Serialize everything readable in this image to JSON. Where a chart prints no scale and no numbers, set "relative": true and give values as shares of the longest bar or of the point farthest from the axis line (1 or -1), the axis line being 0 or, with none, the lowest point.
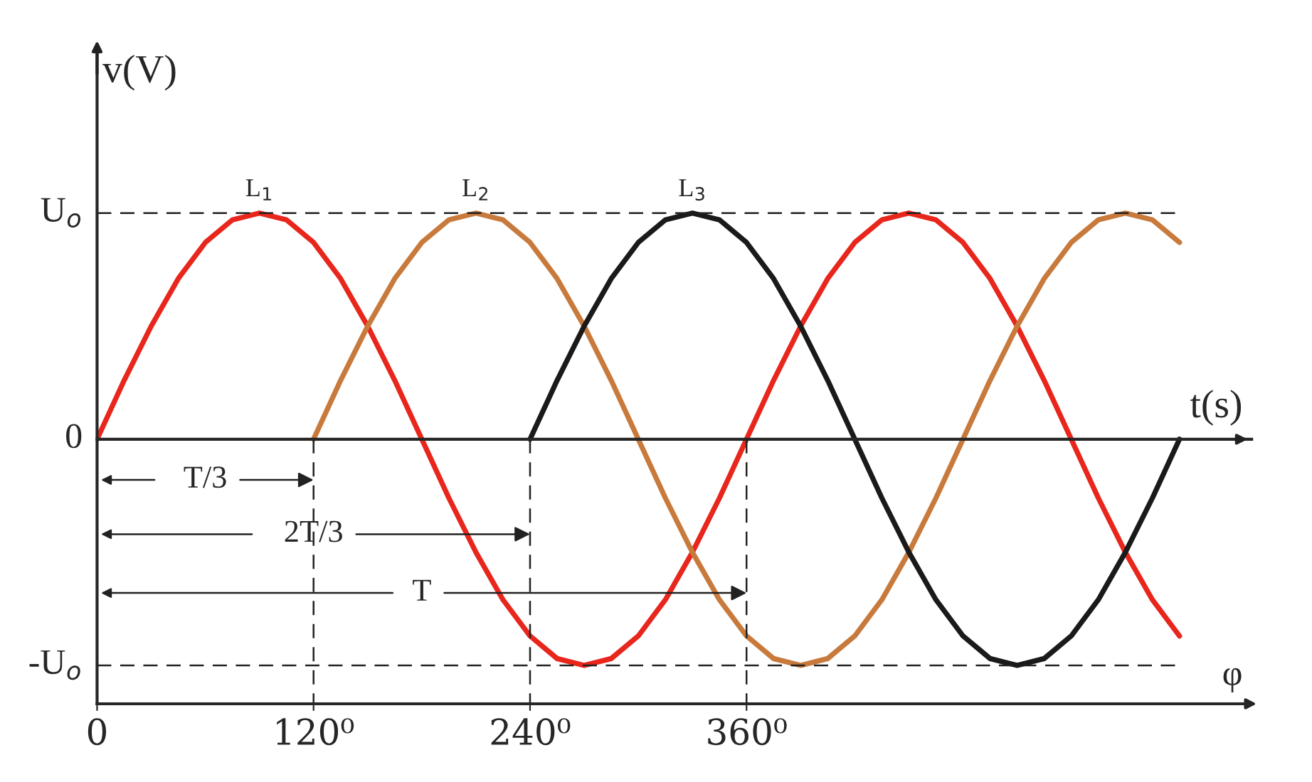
{
  "chart_data": {
    "type": "line",
    "xlabel": "φ",
    "x2label": "t(s)",
    "ylabel": "v(V)",
    "x": [
      0,
      15,
      30,
      45,
      60,
      75,
      90,
      105,
      120,
      135,
      150,
      165,
      180,
      195,
      210,
      225,
      240,
      255,
      270,
      285,
      300,
      315,
      330,
      345,
      360,
      375,
      390,
      405,
      420,
      435,
      450,
      465,
      480,
      495,
      510,
      525,
      540,
      555,
      570,
      585,
      600
    ],
    "series": [
      {
        "name": "L$_{1}$",
        "color": "#e8261c",
        "values": [
          0,
          0.26,
          0.5,
          0.71,
          0.87,
          0.97,
          1,
          0.97,
          0.87,
          0.71,
          0.5,
          0.26,
          0,
          -0.26,
          -0.5,
          -0.71,
          -0.87,
          -0.97,
          -1,
          -0.97,
          -0.87,
          -0.71,
          -0.5,
          -0.26,
          0,
          0.26,
          0.5,
          0.71,
          0.87,
          0.97,
          1,
          0.97,
          0.87,
          0.71,
          0.5,
          0.26,
          0,
          -0.26,
          -0.5,
          -0.71,
          -0.87
        ]
      },
      {
        "name": "L$_{2}$",
        "color": "#c87a3c",
        "values": [
          null,
          null,
          null,
          null,
          null,
          null,
          null,
          null,
          0,
          0.26,
          0.5,
          0.71,
          0.87,
          0.97,
          1,
          0.97,
          0.87,
          0.71,
          0.5,
          0.26,
          0,
          -0.26,
          -0.5,
          -0.71,
          -0.87,
          -0.97,
          -1,
          -0.97,
          -0.87,
          -0.71,
          -0.5,
          -0.26,
          0,
          0.26,
          0.5,
          0.71,
          0.87,
          0.97,
          1,
          0.97,
          0.87
        ]
      },
      {
        "name": "L$_{3}$",
        "color": "#1a1a1a",
        "values": [
          null,
          null,
          null,
          null,
          null,
          null,
          null,
          null,
          null,
          null,
          null,
          null,
          null,
          null,
          null,
          null,
          0,
          0.26,
          0.5,
          0.71,
          0.87,
          0.97,
          1,
          0.97,
          0.87,
          0.71,
          0.5,
          0.26,
          0,
          -0.26,
          -0.5,
          -0.71,
          -0.87,
          -0.97,
          -1,
          -0.97,
          -0.87,
          -0.71,
          -0.5,
          -0.26,
          0
        ]
      }
    ],
    "relative": true,
    "xlim": [
      0,
      640
    ],
    "xticks": [
      0,
      {
        "value": 120,
        "label": "120⁰"
      },
      {
        "value": 240,
        "label": "240⁰"
      },
      {
        "value": 360,
        "label": "360⁰"
      }
    ],
    "ref_lines": [
      {
        "axis": "y",
        "value": 1,
        "line_style": "dashed"
      },
      {
        "axis": "y",
        "value": -1,
        "line_style": "dashed"
      },
      {
        "axis": "x",
        "value": 120,
        "line_style": "dashed"
      },
      {
        "axis": "x",
        "value": 240,
        "line_style": "dashed"
      },
      {
        "axis": "x",
        "value": 360,
        "line_style": "dashed"
      }
    ],
    "annotations": [
      {
        "text": "T/3",
        "x": 120,
        "y": -0.18
      },
      {
        "text": "2T/3",
        "x": 240,
        "y": -0.42
      },
      {
        "text": "T",
        "x": 360,
        "y": -0.68
      },
      {
        "text": "U$_{o}$",
        "x": 0,
        "y": 1
      },
      {
        "text": "0",
        "x": 0,
        "y": 0
      },
      {
        "text": "-U$_{o}$",
        "x": 0,
        "y": -1
      }
    ],
    "legend": false,
    "marker": "none",
    "line_style": "solid"
  }
}
